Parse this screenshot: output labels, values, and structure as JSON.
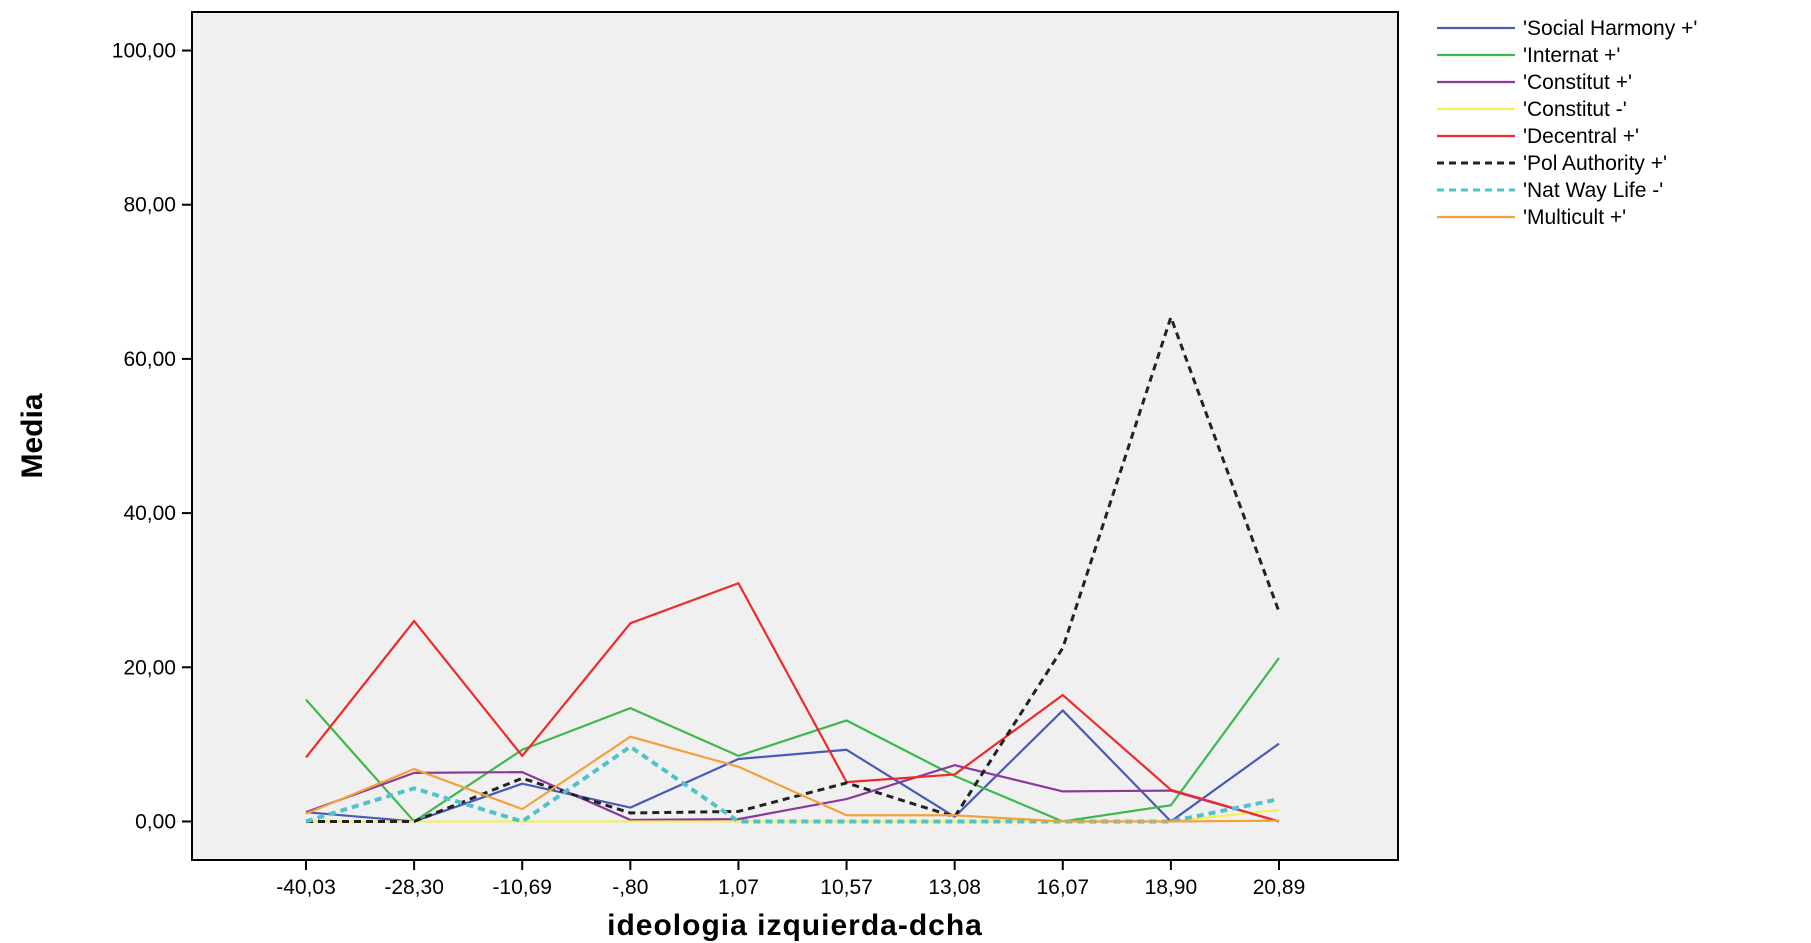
{
  "chart_data": {
    "type": "line",
    "title": "",
    "xlabel": "ideologia izquierda-dcha",
    "ylabel": "Media",
    "categories": [
      "-40,03",
      "-28,30",
      "-10,69",
      "-,80",
      "1,07",
      "10,57",
      "13,08",
      "16,07",
      "18,90",
      "20,89"
    ],
    "ylim": [
      -5,
      105
    ],
    "yticks": [
      0,
      20,
      40,
      60,
      80,
      100
    ],
    "ytick_labels": [
      "0,00",
      "20,00",
      "40,00",
      "60,00",
      "80,00",
      "100,00"
    ],
    "grid": false,
    "legend_position": "right",
    "plot_background": "#f0f0f0",
    "series": [
      {
        "name": "'Social Harmony +'",
        "color": "#4a5bb5",
        "dash": "solid",
        "values": [
          1.2,
          0,
          4.9,
          1.8,
          8.1,
          9.3,
          0.6,
          14.4,
          0,
          10.1
        ]
      },
      {
        "name": "'Internat +'",
        "color": "#3cb94a",
        "dash": "solid",
        "values": [
          15.8,
          0,
          9.3,
          14.7,
          8.5,
          13.1,
          5.9,
          0,
          2.1,
          21.2
        ]
      },
      {
        "name": "'Constitut +'",
        "color": "#8a3a9c",
        "dash": "solid",
        "values": [
          1.2,
          6.3,
          6.4,
          0.2,
          0.3,
          2.9,
          7.3,
          3.9,
          4.0,
          0
        ]
      },
      {
        "name": "'Constitut -'",
        "color": "#f3ef5a",
        "dash": "solid",
        "values": [
          0,
          0,
          0,
          0,
          0,
          0,
          0,
          0,
          0,
          1.5
        ]
      },
      {
        "name": "'Decentral +'",
        "color": "#ee2a2a",
        "dash": "solid",
        "values": [
          8.3,
          26.0,
          8.5,
          25.7,
          30.9,
          5.1,
          6.1,
          16.4,
          4.1,
          0
        ]
      },
      {
        "name": "'Pol Authority +'",
        "color": "#222222",
        "dash": "dashed",
        "values": [
          0,
          0,
          5.6,
          1.1,
          1.3,
          5.0,
          0.6,
          22.5,
          65.4,
          27.2
        ]
      },
      {
        "name": "'Nat Way Life -'",
        "color": "#4fc3c8",
        "dash": "dashed",
        "values": [
          0,
          4.3,
          0,
          9.7,
          0,
          0,
          0,
          0,
          0,
          2.9
        ]
      },
      {
        "name": "'Multicult +'",
        "color": "#f3a13c",
        "dash": "solid",
        "values": [
          1.0,
          6.8,
          1.6,
          11.0,
          7.1,
          0.8,
          0.8,
          0.0,
          0.0,
          0.1
        ]
      }
    ]
  }
}
